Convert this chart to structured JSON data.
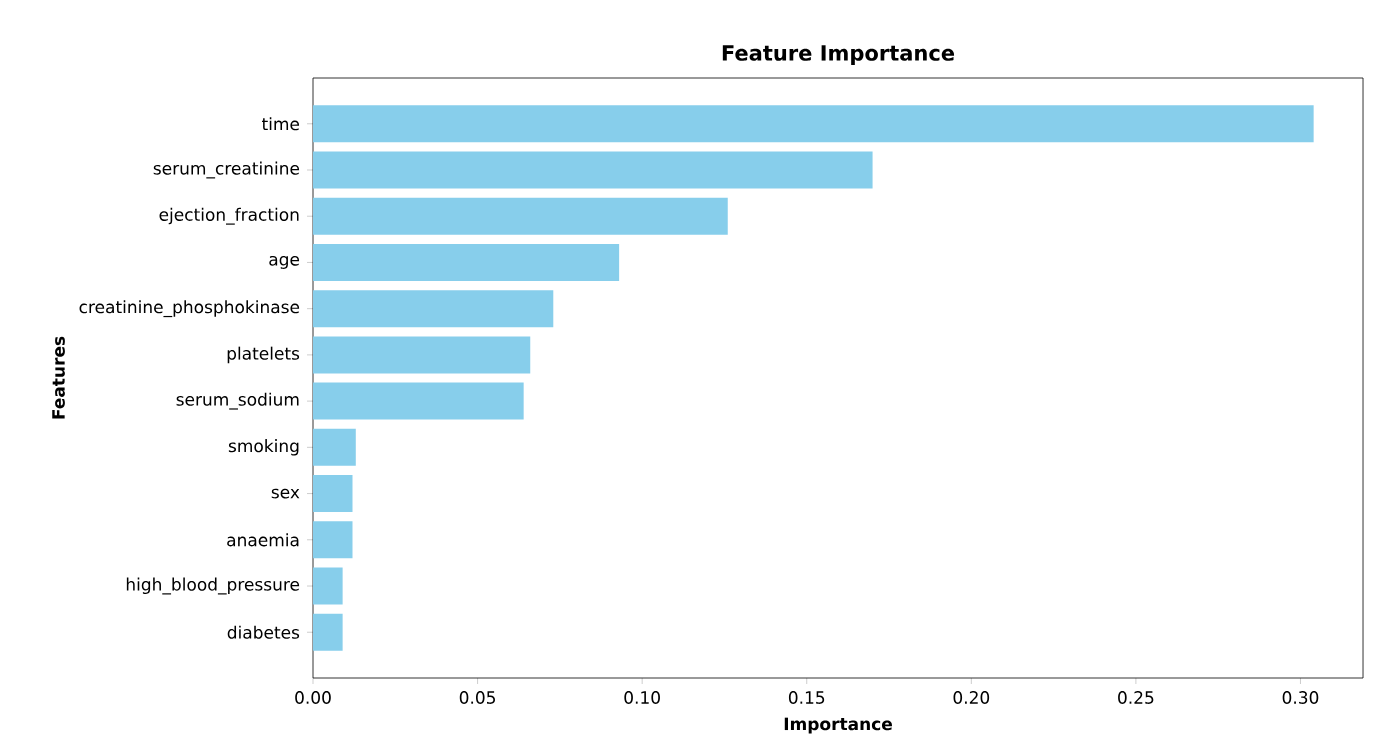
{
  "chart_data": {
    "type": "bar",
    "orientation": "horizontal",
    "title": "Feature Importance",
    "xlabel": "Importance",
    "ylabel": "Features",
    "categories": [
      "time",
      "serum_creatinine",
      "ejection_fraction",
      "age",
      "creatinine_phosphokinase",
      "platelets",
      "serum_sodium",
      "smoking",
      "sex",
      "anaemia",
      "high_blood_pressure",
      "diabetes"
    ],
    "values": [
      0.304,
      0.17,
      0.126,
      0.093,
      0.073,
      0.066,
      0.064,
      0.013,
      0.012,
      0.012,
      0.009,
      0.009
    ],
    "color": "#87ceeb",
    "xlim": [
      0,
      0.319
    ],
    "xticks": [
      {
        "value": 0,
        "label": "0.00"
      },
      {
        "value": 0.05,
        "label": "0.05"
      },
      {
        "value": 0.1,
        "label": "0.10"
      },
      {
        "value": 0.15,
        "label": "0.15"
      },
      {
        "value": 0.2,
        "label": "0.20"
      },
      {
        "value": 0.25,
        "label": "0.25"
      },
      {
        "value": 0.3,
        "label": "0.30"
      }
    ],
    "grid": false
  }
}
